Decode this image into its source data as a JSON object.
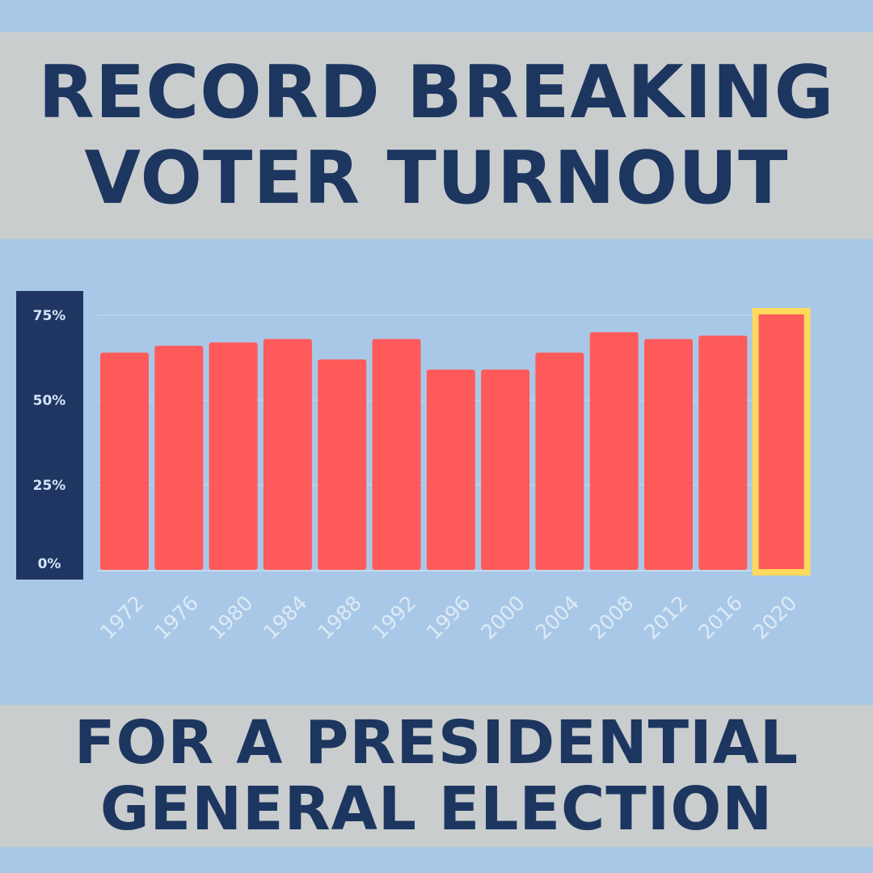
{
  "header": {
    "line1": "RECORD BREAKING",
    "line2": "VOTER TURNOUT"
  },
  "footer": {
    "line1": "FOR A PRESIDENTIAL",
    "line2": "GENERAL ELECTION"
  },
  "colors": {
    "background": "#a9c8e7",
    "band": "#c9cdcd",
    "title": "#1d3660",
    "axis_panel": "#1f3662",
    "bar": "#ff5a5a",
    "highlight": "#fdd95c"
  },
  "chart_data": {
    "type": "bar",
    "categories": [
      "1972",
      "1976",
      "1980",
      "1984",
      "1988",
      "1992",
      "1996",
      "2000",
      "2004",
      "2008",
      "2012",
      "2016",
      "2020"
    ],
    "values": [
      64,
      66,
      67,
      68,
      62,
      68,
      59,
      59,
      64,
      70,
      68,
      69,
      75
    ],
    "y_ticks": [
      "0%",
      "25%",
      "50%",
      "75%"
    ],
    "y_tick_values": [
      0,
      25,
      50,
      75
    ],
    "ylim": [
      0,
      75
    ],
    "highlighted_category": "2020",
    "grid": true,
    "xlabel": "",
    "ylabel": ""
  }
}
